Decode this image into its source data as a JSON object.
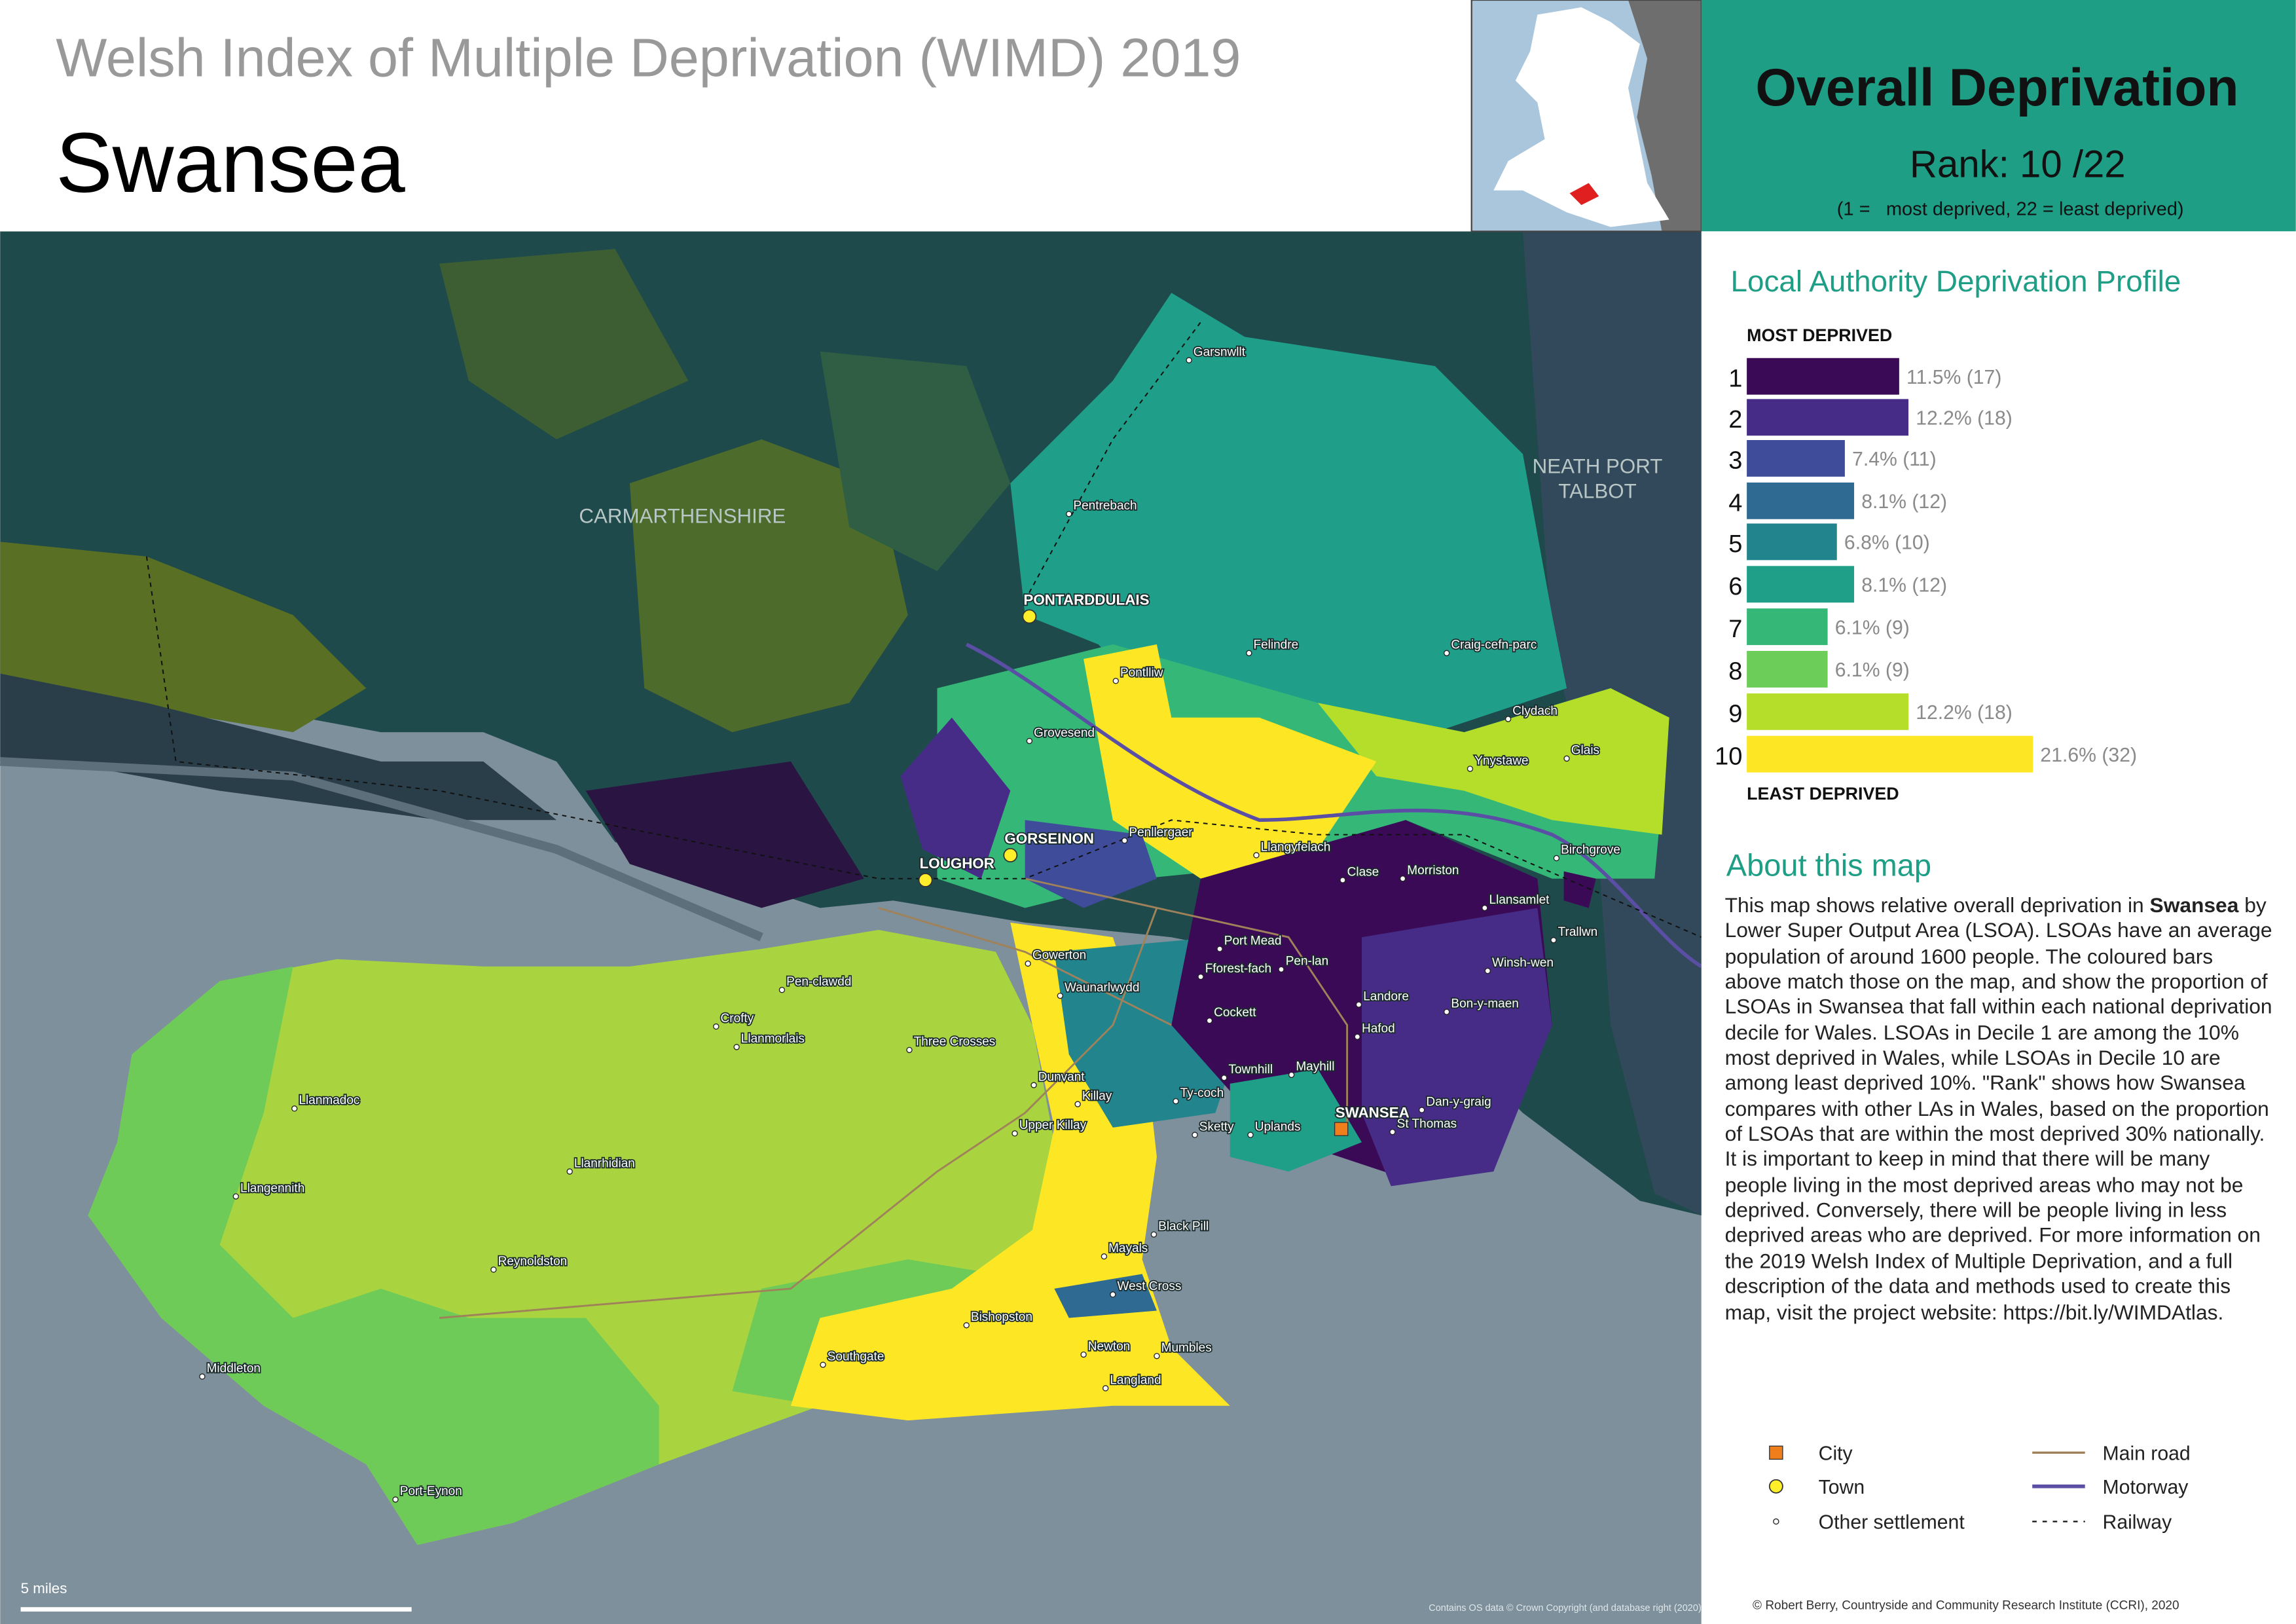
{
  "header": {
    "subtitle": "Welsh Index of Multiple Deprivation (WIMD) 2019",
    "title": "Swansea"
  },
  "summary": {
    "title": "Overall Deprivation",
    "rank": "Rank: 10 /22",
    "rank_note": "(1 =   most deprived, 22 = least deprived)"
  },
  "profile": {
    "title": "Local Authority Deprivation Profile",
    "top_label": "MOST DEPRIVED",
    "bottom_label": "LEAST DEPRIVED",
    "deciles": [
      {
        "decile": 1,
        "percent": 11.5,
        "label": "11.5% (17)",
        "color": "#3a0a56"
      },
      {
        "decile": 2,
        "percent": 12.2,
        "label": "12.2% (18)",
        "color": "#462c87"
      },
      {
        "decile": 3,
        "percent": 7.4,
        "label": "7.4% (11)",
        "color": "#3e4c99"
      },
      {
        "decile": 4,
        "percent": 8.1,
        "label": "8.1% (12)",
        "color": "#2e6a91"
      },
      {
        "decile": 5,
        "percent": 6.8,
        "label": "6.8% (10)",
        "color": "#22848d"
      },
      {
        "decile": 6,
        "percent": 8.1,
        "label": "8.1% (12)",
        "color": "#1f9e88"
      },
      {
        "decile": 7,
        "percent": 6.1,
        "label": "6.1% (9)",
        "color": "#35b877"
      },
      {
        "decile": 8,
        "percent": 6.1,
        "label": "6.1% (9)",
        "color": "#6dcd59"
      },
      {
        "decile": 9,
        "percent": 12.2,
        "label": "12.2% (18)",
        "color": "#b5de2b"
      },
      {
        "decile": 10,
        "percent": 21.6,
        "label": "21.6% (32)",
        "color": "#fde725"
      }
    ]
  },
  "about": {
    "title": "About this map",
    "text_before": "This map shows relative overall deprivation in",
    "bold": "Swansea",
    "text_after": "by Lower Super Output Area (LSOA). LSOAs have an average population of around 1600 people. The coloured bars above match those on the map, and show the proportion of LSOAs in Swansea that fall within each national deprivation decile for Wales. LSOAs in Decile 1 are among the 10% most deprived in Wales, while LSOAs in Decile 10 are among least deprived 10%. \"Rank\" shows how Swansea compares with other LAs in Wales, based on the proportion of LSOAs that are within the most deprived 30% nationally. It is important to keep in mind that there will be many people living in the most deprived areas who may not be deprived. Conversely, there will be people living in less deprived areas who are deprived. For more information on the 2019 Welsh Index of Multiple Deprivation, and a full description of the data and methods used to create this map, visit the project website: https://bit.ly/WIMDAtlas."
  },
  "legend": {
    "settlements": [
      "City",
      "Town",
      "Other settlement"
    ],
    "lines": [
      "Main road",
      "Motorway",
      "Railway"
    ]
  },
  "map": {
    "region_labels": [
      {
        "lines": [
          "CARMARTHENSHIRE"
        ]
      },
      {
        "lines": [
          "NEATH PORT",
          "TALBOT"
        ]
      }
    ],
    "places": [
      {
        "name": "Garsnwllt",
        "type": "other"
      },
      {
        "name": "Pentrebach",
        "type": "other"
      },
      {
        "name": "PONTARDDULAIS",
        "type": "town"
      },
      {
        "name": "Felindre",
        "type": "other"
      },
      {
        "name": "Craig-cefn-parc",
        "type": "other"
      },
      {
        "name": "Clydach",
        "type": "other"
      },
      {
        "name": "Pontlliw",
        "type": "other"
      },
      {
        "name": "Grovesend",
        "type": "other"
      },
      {
        "name": "Ynystawe",
        "type": "other"
      },
      {
        "name": "Glais",
        "type": "other"
      },
      {
        "name": "GORSEINON",
        "type": "town"
      },
      {
        "name": "LOUGHOR",
        "type": "town"
      },
      {
        "name": "Penllergaer",
        "type": "other"
      },
      {
        "name": "Llangyfelach",
        "type": "other"
      },
      {
        "name": "Birchgrove",
        "type": "other"
      },
      {
        "name": "Clase",
        "type": "other"
      },
      {
        "name": "Morriston",
        "type": "other"
      },
      {
        "name": "Llansamlet",
        "type": "other"
      },
      {
        "name": "Trallwn",
        "type": "other"
      },
      {
        "name": "Pen-clawdd",
        "type": "other"
      },
      {
        "name": "Port Mead",
        "type": "other"
      },
      {
        "name": "Pen-lan",
        "type": "other"
      },
      {
        "name": "Fforest-fach",
        "type": "other"
      },
      {
        "name": "Winsh-wen",
        "type": "other"
      },
      {
        "name": "Gowerton",
        "type": "other"
      },
      {
        "name": "Waunarlwydd",
        "type": "other"
      },
      {
        "name": "Landore",
        "type": "other"
      },
      {
        "name": "Bon-y-maen",
        "type": "other"
      },
      {
        "name": "Crofty",
        "type": "other"
      },
      {
        "name": "Llanmorlais",
        "type": "other"
      },
      {
        "name": "Cockett",
        "type": "other"
      },
      {
        "name": "Hafod",
        "type": "other"
      },
      {
        "name": "Three Crosses",
        "type": "other"
      },
      {
        "name": "Townhill",
        "type": "other"
      },
      {
        "name": "Mayhill",
        "type": "other"
      },
      {
        "name": "SWANSEA",
        "type": "city"
      },
      {
        "name": "Dan-y-graig",
        "type": "other"
      },
      {
        "name": "St Thomas",
        "type": "other"
      },
      {
        "name": "Llanmadoc",
        "type": "other"
      },
      {
        "name": "Dunvant",
        "type": "other"
      },
      {
        "name": "Killay",
        "type": "other"
      },
      {
        "name": "Ty-coch",
        "type": "other"
      },
      {
        "name": "Sketty",
        "type": "other"
      },
      {
        "name": "Uplands",
        "type": "other"
      },
      {
        "name": "Upper Killay",
        "type": "other"
      },
      {
        "name": "Llanrhidian",
        "type": "other"
      },
      {
        "name": "Llangennith",
        "type": "other"
      },
      {
        "name": "Black Pill",
        "type": "other"
      },
      {
        "name": "Mayals",
        "type": "other"
      },
      {
        "name": "Reynoldston",
        "type": "other"
      },
      {
        "name": "West Cross",
        "type": "other"
      },
      {
        "name": "Bishopston",
        "type": "other"
      },
      {
        "name": "Southgate",
        "type": "other"
      },
      {
        "name": "Newton",
        "type": "other"
      },
      {
        "name": "Mumbles",
        "type": "other"
      },
      {
        "name": "Middleton",
        "type": "other"
      },
      {
        "name": "Langland",
        "type": "other"
      },
      {
        "name": "Port-Eynon",
        "type": "other"
      }
    ],
    "scale_label": "5 miles",
    "attribution": "Contains OS data © Crown Copyright (and database right (2020)"
  },
  "credit": "© Robert Berry, Countryside and Community Research Institute (CCRI), 2020"
}
